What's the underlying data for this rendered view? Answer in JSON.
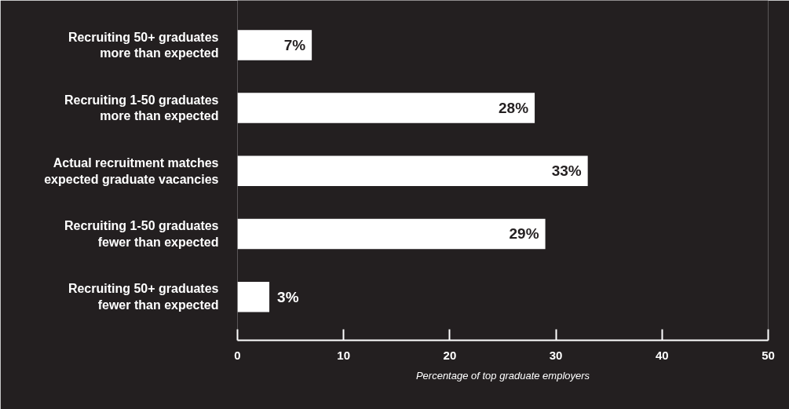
{
  "chart_data": {
    "type": "bar",
    "orientation": "horizontal",
    "categories": [
      "Recruiting 50+ graduates more than expected",
      "Recruiting 1-50 graduates more than expected",
      "Actual recruitment matches expected graduate vacancies",
      "Recruiting 1-50 graduates fewer than expected",
      "Recruiting 50+ graduates fewer than expected"
    ],
    "values": [
      7,
      28,
      33,
      29,
      3
    ],
    "value_labels": [
      "7%",
      "28%",
      "33%",
      "29%",
      "3%"
    ],
    "color": "#ffffff",
    "xlim": [
      0,
      50
    ],
    "xticks": [
      0,
      10,
      20,
      30,
      40,
      50
    ],
    "xlabel": "Percentage of top graduate employers",
    "grid": false
  }
}
